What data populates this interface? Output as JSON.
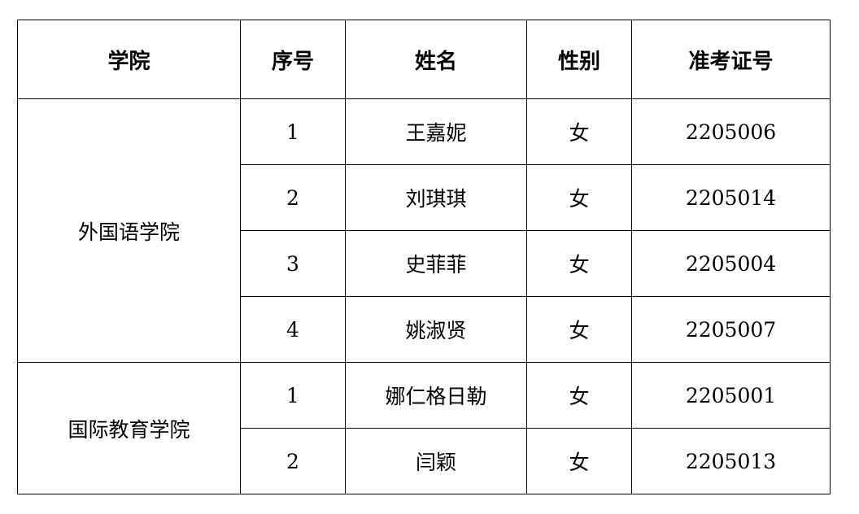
{
  "headers": [
    "学院",
    "序号",
    "姓名",
    "性别",
    "准考证号"
  ],
  "groups": [
    {
      "college": "外国语学院",
      "rows": [
        {
          "no": "1",
          "name": "王嘉妮",
          "gender": "女",
          "id": "2205006"
        },
        {
          "no": "2",
          "name": "刘琪琪",
          "gender": "女",
          "id": "2205014"
        },
        {
          "no": "3",
          "name": "史菲菲",
          "gender": "女",
          "id": "2205004"
        },
        {
          "no": "4",
          "name": "姚淑贤",
          "gender": "女",
          "id": "2205007"
        }
      ]
    },
    {
      "college": "国际教育学院",
      "rows": [
        {
          "no": "1",
          "name": "娜仁格日勒",
          "gender": "女",
          "id": "2205001"
        },
        {
          "no": "2",
          "name": "闫颖",
          "gender": "女",
          "id": "2205013"
        }
      ]
    }
  ]
}
